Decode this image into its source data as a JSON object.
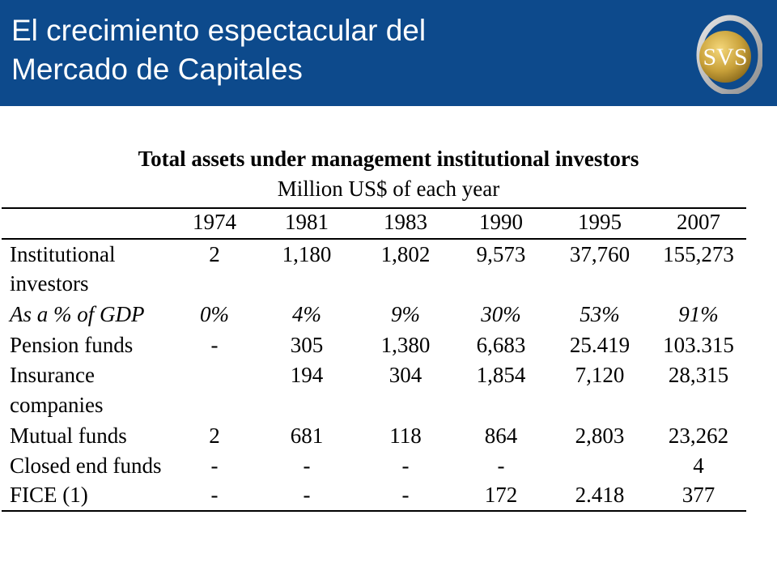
{
  "header": {
    "title_line1": "El crecimiento espectacular del",
    "title_line2": "Mercado de Capitales",
    "logo_text": "SVS",
    "logo_icon": "svs-ring-logo",
    "bg_color": "#0d4a8c"
  },
  "table": {
    "title": "Total assets under management institutional investors",
    "subtitle": "Million US$ of each year",
    "years": [
      "1974",
      "1981",
      "1983",
      "1990",
      "1995",
      "2007"
    ],
    "rows": [
      {
        "label_line1": "Institutional",
        "label_line2": "investors",
        "values": [
          "2",
          "1,180",
          "1,802",
          "9,573",
          "37,760",
          "155,273"
        ]
      },
      {
        "label_line1": "As a % of GDP",
        "values": [
          "0%",
          "4%",
          "9%",
          "30%",
          "53%",
          "91%"
        ]
      },
      {
        "label_line1": "Pension funds",
        "values": [
          "-",
          "305",
          "1,380",
          "6,683",
          "25.419",
          "103.315"
        ]
      },
      {
        "label_line1": "Insurance",
        "label_line2": "companies",
        "values": [
          "",
          "194",
          "304",
          "1,854",
          "7,120",
          "28,315"
        ]
      },
      {
        "label_line1": "Mutual funds",
        "values": [
          "2",
          "681",
          "118",
          "864",
          "2,803",
          "23,262"
        ]
      },
      {
        "label_line1": "Closed end funds",
        "values": [
          "-",
          "-",
          "-",
          "-",
          "",
          "4"
        ]
      },
      {
        "label_line1": "FICE (1)",
        "values": [
          "-",
          "-",
          "-",
          "172",
          "2.418",
          "377"
        ]
      }
    ]
  }
}
